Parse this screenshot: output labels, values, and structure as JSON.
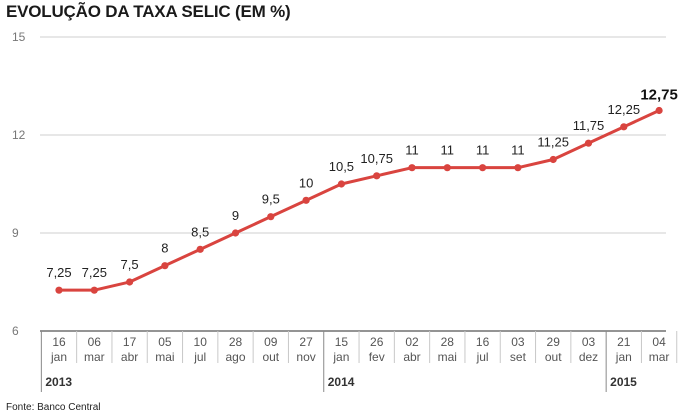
{
  "chart_data": {
    "type": "line",
    "title": "EVOLUÇÃO DA TAXA SELIC (EM %)",
    "source": "Fonte: Banco Central",
    "ylim": [
      6,
      15
    ],
    "yticks": [
      "6",
      "9",
      "12",
      "15"
    ],
    "grid": true,
    "line_color": "#d9443f",
    "categories": [
      {
        "day": "16",
        "month": "jan"
      },
      {
        "day": "06",
        "month": "mar"
      },
      {
        "day": "17",
        "month": "abr"
      },
      {
        "day": "05",
        "month": "mai"
      },
      {
        "day": "10",
        "month": "jul"
      },
      {
        "day": "28",
        "month": "ago"
      },
      {
        "day": "09",
        "month": "out"
      },
      {
        "day": "27",
        "month": "nov"
      },
      {
        "day": "15",
        "month": "jan"
      },
      {
        "day": "26",
        "month": "fev"
      },
      {
        "day": "02",
        "month": "abr"
      },
      {
        "day": "28",
        "month": "mai"
      },
      {
        "day": "16",
        "month": "jul"
      },
      {
        "day": "03",
        "month": "set"
      },
      {
        "day": "29",
        "month": "out"
      },
      {
        "day": "03",
        "month": "dez"
      },
      {
        "day": "21",
        "month": "jan"
      },
      {
        "day": "04",
        "month": "mar"
      }
    ],
    "years": [
      {
        "label": "2013",
        "start_index": 0
      },
      {
        "label": "2014",
        "start_index": 8
      },
      {
        "label": "2015",
        "start_index": 16
      }
    ],
    "series": [
      {
        "values": [
          7.25,
          7.25,
          7.5,
          8,
          8.5,
          9,
          9.5,
          10,
          10.5,
          10.75,
          11,
          11,
          11,
          11,
          11.25,
          11.75,
          12.25,
          12.75
        ],
        "labels": [
          "7,25",
          "7,25",
          "7,5",
          "8",
          "8,5",
          "9",
          "9,5",
          "10",
          "10,5",
          "10,75",
          "11",
          "11",
          "11",
          "11",
          "11,25",
          "11,75",
          "12,25",
          "12,75"
        ]
      }
    ]
  }
}
